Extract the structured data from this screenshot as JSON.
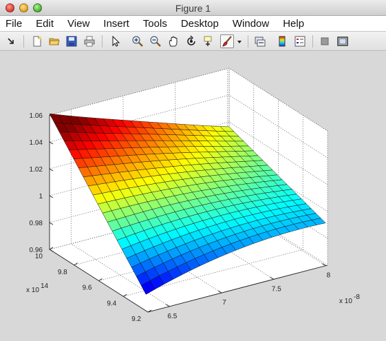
{
  "window": {
    "title": "Figure 1"
  },
  "menu": {
    "items": [
      "File",
      "Edit",
      "View",
      "Insert",
      "Tools",
      "Desktop",
      "Window",
      "Help"
    ]
  },
  "toolbar": {
    "icons": [
      "arrow-icon",
      "new-figure-icon",
      "open-icon",
      "save-icon",
      "print-icon",
      "pointer-icon",
      "zoom-in-icon",
      "zoom-out-icon",
      "pan-icon",
      "rotate-icon",
      "data-cursor-icon",
      "brush-icon",
      "brush-dropdown-icon",
      "link-icon",
      "colorbar-icon",
      "legend-icon",
      "hide-tools-icon",
      "dock-icon"
    ],
    "active": "brush-icon"
  },
  "chart_data": {
    "type": "surface",
    "z_ticks": [
      "0.96",
      "0.98",
      "1",
      "1.02",
      "1.04",
      "1.06"
    ],
    "y_ticks": [
      "9.2",
      "9.4",
      "9.6",
      "9.8",
      "10"
    ],
    "y_exponent": "x 10",
    "y_exponent_power": "14",
    "x_ticks": [
      "6.5",
      "7",
      "7.5",
      "8"
    ],
    "x_exponent": "x 10",
    "x_exponent_power": "-8",
    "zlim": [
      0.96,
      1.06
    ],
    "grid": true,
    "colormap": "jet"
  }
}
